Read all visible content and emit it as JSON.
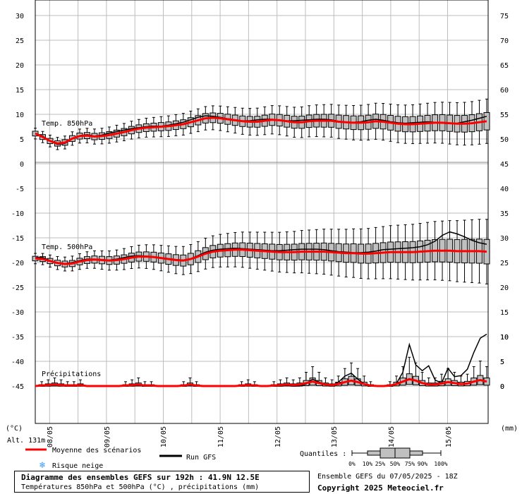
{
  "chart_data": {
    "type": "box",
    "title": "Diagramme des ensembles GEFS sur 192h : 41.9N 12.5E",
    "subtitle": "Températures 850hPa et 500hPa (°C) , précipitations (mm)",
    "left_unit": "(°C)",
    "right_unit": "(mm)",
    "altitude": "Alt. 131m",
    "x_ticks": [
      "08/05",
      "09/05",
      "10/05",
      "11/05",
      "12/05",
      "13/05",
      "14/05",
      "15/05"
    ],
    "panels": [
      {
        "name": "Temp. 850hPa",
        "left_ticks": [
          "30",
          "25",
          "20",
          "15",
          "10",
          "5",
          "0"
        ],
        "right_ticks": [
          "75",
          "70",
          "65",
          "60",
          "55",
          "50",
          "45"
        ],
        "ylim": [
          0,
          30
        ],
        "mean": [
          6.1,
          5.4,
          4.6,
          4.1,
          4.3,
          5.1,
          5.6,
          5.7,
          5.5,
          5.6,
          5.8,
          6.1,
          6.4,
          6.8,
          7.1,
          7.3,
          7.4,
          7.5,
          7.6,
          7.8,
          8.0,
          8.4,
          8.8,
          9.2,
          9.3,
          9.2,
          9.0,
          8.8,
          8.6,
          8.5,
          8.5,
          8.7,
          8.9,
          8.8,
          8.6,
          8.4,
          8.4,
          8.6,
          8.7,
          8.7,
          8.7,
          8.5,
          8.4,
          8.3,
          8.3,
          8.4,
          8.6,
          8.5,
          8.3,
          8.1,
          8.0,
          8.0,
          8.1,
          8.2,
          8.3,
          8.3,
          8.2,
          8.1,
          8.1,
          8.2,
          8.4,
          8.6
        ],
        "gfs": [
          6.2,
          5.6,
          4.6,
          3.9,
          4.1,
          5.0,
          5.7,
          5.9,
          5.6,
          5.8,
          6.2,
          6.5,
          6.8,
          7.1,
          7.3,
          7.5,
          7.6,
          7.6,
          7.8,
          8.1,
          8.4,
          8.9,
          9.4,
          9.7,
          9.6,
          9.4,
          9.1,
          8.9,
          8.7,
          8.7,
          8.9,
          9.0,
          9.0,
          8.8,
          8.7,
          8.7,
          8.8,
          8.9,
          9.0,
          9.0,
          8.9,
          8.6,
          8.4,
          8.4,
          8.5,
          8.8,
          9.0,
          8.8,
          8.5,
          8.3,
          8.2,
          8.3,
          8.4,
          8.5,
          8.4,
          8.2,
          8.1,
          8.2,
          8.5,
          8.8,
          9.2,
          9.6
        ]
      },
      {
        "name": "Temp. 500hPa",
        "left_ticks": [
          "-5",
          "-10",
          "-15",
          "-20",
          "-25",
          "-30",
          "-35",
          "-40",
          "-45"
        ],
        "right_ticks": [
          "40",
          "35",
          "30",
          "25",
          "20",
          "15",
          "10",
          "5",
          "0"
        ],
        "ylim": [
          -45,
          0
        ],
        "mean": [
          -19.2,
          -19.3,
          -19.7,
          -20.1,
          -20.3,
          -20.2,
          -19.8,
          -19.5,
          -19.4,
          -19.5,
          -19.6,
          -19.5,
          -19.3,
          -19.0,
          -18.8,
          -18.8,
          -18.9,
          -19.1,
          -19.3,
          -19.5,
          -19.6,
          -19.3,
          -18.8,
          -18.2,
          -17.8,
          -17.6,
          -17.5,
          -17.4,
          -17.4,
          -17.5,
          -17.6,
          -17.7,
          -17.8,
          -17.9,
          -17.9,
          -17.9,
          -17.8,
          -17.8,
          -17.8,
          -17.8,
          -17.9,
          -18.0,
          -18.1,
          -18.1,
          -18.2,
          -18.2,
          -18.1,
          -18.0,
          -17.9,
          -17.9,
          -17.9,
          -17.9,
          -17.8,
          -17.7,
          -17.6,
          -17.6,
          -17.6,
          -17.7,
          -17.7,
          -17.7,
          -17.7,
          -17.8
        ],
        "gfs": [
          -19.0,
          -19.0,
          -19.6,
          -20.0,
          -20.2,
          -20.0,
          -19.6,
          -19.3,
          -19.3,
          -19.4,
          -19.5,
          -19.3,
          -19.0,
          -18.7,
          -18.6,
          -18.7,
          -18.8,
          -19.0,
          -19.2,
          -19.4,
          -19.5,
          -19.2,
          -18.6,
          -17.9,
          -17.5,
          -17.3,
          -17.2,
          -17.1,
          -17.2,
          -17.3,
          -17.4,
          -17.5,
          -17.6,
          -17.6,
          -17.5,
          -17.4,
          -17.3,
          -17.3,
          -17.3,
          -17.4,
          -17.6,
          -17.8,
          -17.9,
          -18.0,
          -18.0,
          -17.9,
          -17.7,
          -17.4,
          -17.3,
          -17.2,
          -17.1,
          -17.0,
          -16.8,
          -16.4,
          -15.7,
          -14.5,
          -13.8,
          -14.2,
          -14.8,
          -15.5,
          -16.0,
          -16.3
        ]
      },
      {
        "name": "Précipitations",
        "right_ticks": [
          "10",
          "5",
          "0"
        ],
        "ylim": [
          0,
          10
        ],
        "mean": [
          0,
          0.1,
          0.2,
          0.3,
          0.2,
          0.1,
          0.1,
          0.2,
          0,
          0,
          0,
          0,
          0,
          0,
          0.1,
          0.2,
          0.3,
          0.1,
          0.1,
          0,
          0,
          0,
          0,
          0.1,
          0.3,
          0.1,
          0,
          0,
          0,
          0,
          0,
          0,
          0.1,
          0.2,
          0.1,
          0,
          0,
          0.1,
          0.2,
          0.3,
          0.2,
          0.3,
          0.6,
          0.9,
          0.6,
          0.3,
          0.2,
          0.4,
          0.8,
          1.1,
          0.8,
          0.4,
          0.1,
          0,
          0,
          0.1,
          0.4,
          0.9,
          1.4,
          1.1,
          0.6,
          0.3,
          0.3,
          0.5,
          0.8,
          0.6,
          0.4,
          0.5,
          0.9,
          1.2,
          0.9
        ],
        "gfs": [
          0,
          0.1,
          0.2,
          0.3,
          0.2,
          0.1,
          0.1,
          0.1,
          0,
          0,
          0,
          0,
          0,
          0,
          0,
          0.1,
          0.2,
          0.1,
          0,
          0,
          0,
          0,
          0,
          0,
          0.1,
          0,
          0,
          0,
          0,
          0,
          0,
          0,
          0,
          0.1,
          0,
          0,
          0,
          0,
          0,
          0.1,
          0,
          0,
          0.4,
          1.4,
          0.8,
          0.3,
          0.1,
          0.8,
          2.0,
          2.6,
          1.4,
          0.4,
          0,
          0,
          0,
          0,
          0.5,
          2.8,
          8.4,
          4.3,
          3.1,
          4.1,
          1.2,
          0.6,
          3.6,
          1.9,
          2.1,
          3.4,
          6.8,
          9.7,
          10.5
        ]
      }
    ]
  },
  "legend": {
    "mean_label": "Moyenne des scénarios",
    "gfs_label": "Run GFS",
    "snow_label": "Risque neige",
    "quantiles_label": "Quantiles :",
    "quantile_ticks": [
      "0%",
      "10%",
      "25%",
      "50%",
      "75%",
      "90%",
      "100%"
    ],
    "colors": {
      "mean": "#ff0000",
      "gfs": "#000000",
      "box": "#c0c0c0",
      "snow": "#3399ff"
    }
  },
  "footer": {
    "run_info": "Ensemble GEFS du 07/05/2025 - 18Z",
    "copyright": "Copyright 2025 Meteociel.fr"
  }
}
